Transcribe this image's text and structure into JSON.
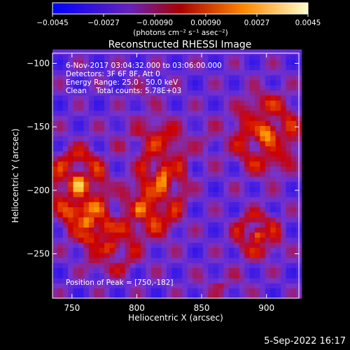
{
  "colorbar": {
    "ticks": [
      "-0.0045",
      "-0.0027",
      "-0.00090",
      "0.00090",
      "0.0027",
      "0.0045"
    ],
    "unit_label": "(photons cm⁻² s⁻¹ asec⁻²)",
    "range": [
      -0.0045,
      0.0045
    ]
  },
  "header_lines": [
    "6-Nov-2017 03:04:32.000 to 03:06:00.000",
    "Detectors: 3F 6F 8F, Att 0",
    "Energy Range: 25.0 - 50.0 keV",
    "Clean    Total counts: 5.78E+03"
  ],
  "peak_text": "Position of Peak = [750,-182]",
  "footer_date": "5-Sep-2022 16:17",
  "colors": {
    "background": "#000000",
    "text": "#ffffff"
  },
  "chart_data": {
    "type": "heatmap",
    "title": "Reconstructed RHESSI Image",
    "xlabel": "Heliocentric X (arcsec)",
    "ylabel": "Heliocentric Y (arcsec)",
    "xlim": [
      735,
      925
    ],
    "ylim": [
      -285,
      -92
    ],
    "xticks": [
      750,
      800,
      850,
      900
    ],
    "yticks": [
      -100,
      -150,
      -200,
      -250
    ],
    "colormap": [
      "#0000ff",
      "#7733cc",
      "#cc0000",
      "#ff9900",
      "#ffff99"
    ],
    "peak": [
      750,
      -182
    ],
    "sources": [
      {
        "x": 755,
        "y": -195,
        "intensity": 0.0045,
        "sx": 14,
        "sy": 18
      },
      {
        "x": 762,
        "y": -225,
        "intensity": 0.003,
        "sx": 12,
        "sy": 10
      },
      {
        "x": 780,
        "y": -245,
        "intensity": 0.0028,
        "sx": 14,
        "sy": 14
      },
      {
        "x": 820,
        "y": -190,
        "intensity": 0.0038,
        "sx": 12,
        "sy": 28
      },
      {
        "x": 802,
        "y": -215,
        "intensity": 0.0025,
        "sx": 10,
        "sy": 14
      },
      {
        "x": 800,
        "y": -155,
        "intensity": 0.001,
        "sx": 14,
        "sy": 10
      },
      {
        "x": 805,
        "y": -125,
        "intensity": 0.001,
        "sx": 6,
        "sy": 6
      },
      {
        "x": 900,
        "y": -155,
        "intensity": 0.0042,
        "sx": 16,
        "sy": 20
      },
      {
        "x": 893,
        "y": -235,
        "intensity": 0.0036,
        "sx": 12,
        "sy": 12
      },
      {
        "x": 855,
        "y": -160,
        "intensity": 0.0008,
        "sx": 12,
        "sy": 12
      },
      {
        "x": 865,
        "y": -275,
        "intensity": 0.0012,
        "sx": 14,
        "sy": 8
      }
    ]
  }
}
